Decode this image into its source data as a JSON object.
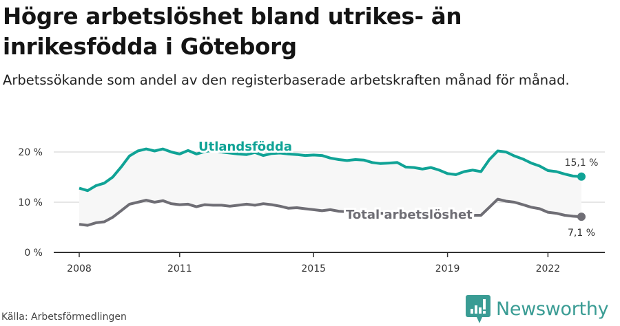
{
  "header": {
    "title": "Högre arbetslöshet bland utrikes- än inrikesfödda i Göteborg",
    "subtitle": "Arbetssökande som andel av den registerbaserade arbetskraften månad för månad."
  },
  "footer": {
    "source": "Källa: Arbetsförmedlingen",
    "brand": "Newsworthy",
    "brand_icon": "bar-chart-speech-bubble-icon"
  },
  "colors": {
    "utlandsfodda": "#10a396",
    "total": "#6f6e75",
    "band_fill": "#f7f7f7",
    "grid": "#dddddd",
    "axis": "#333333",
    "brand": "#3a9c94"
  },
  "chart_data": {
    "type": "line",
    "title": "Högre arbetslöshet bland utrikes- än inrikesfödda i Göteborg",
    "subtitle": "Arbetssökande som andel av den registerbaserade arbetskraften månad för månad.",
    "xlabel": "",
    "ylabel": "",
    "ylim": [
      0,
      22
    ],
    "y_ticks": [
      0,
      10,
      20
    ],
    "y_tick_labels": [
      "0 %",
      "10 %",
      "20 %"
    ],
    "x_ticks": [
      2008,
      2011,
      2015,
      2019,
      2022
    ],
    "x_tick_labels": [
      "2008",
      "2011",
      "2015",
      "2019",
      "2022"
    ],
    "grid": true,
    "legend": "inline labels",
    "x_start": 2008.0,
    "x_step_months": 3,
    "series": [
      {
        "name": "Utlandsfödda",
        "label": "Utlandsfödda",
        "end_label": "15,1 %",
        "values": [
          12.8,
          12.3,
          13.3,
          13.8,
          15.0,
          17.0,
          19.2,
          20.2,
          20.6,
          20.2,
          20.6,
          20.0,
          19.6,
          20.3,
          19.6,
          20.1,
          20.3,
          20.0,
          19.8,
          19.6,
          19.5,
          19.9,
          19.3,
          19.7,
          19.8,
          19.6,
          19.5,
          19.3,
          19.4,
          19.3,
          18.8,
          18.5,
          18.3,
          18.5,
          18.4,
          17.9,
          17.7,
          17.8,
          17.9,
          17.0,
          16.9,
          16.6,
          16.9,
          16.4,
          15.7,
          15.5,
          16.1,
          16.4,
          16.1,
          18.5,
          20.2,
          20.0,
          19.2,
          18.6,
          17.8,
          17.2,
          16.3,
          16.1,
          15.6,
          15.2,
          15.1
        ]
      },
      {
        "name": "Total arbetslöshet",
        "label": "Total arbetslöshet",
        "end_label": "7,1 %",
        "values": [
          5.6,
          5.4,
          5.9,
          6.1,
          7.0,
          8.3,
          9.6,
          10.0,
          10.4,
          10.0,
          10.3,
          9.7,
          9.5,
          9.6,
          9.1,
          9.5,
          9.4,
          9.4,
          9.2,
          9.4,
          9.6,
          9.4,
          9.7,
          9.5,
          9.2,
          8.8,
          8.9,
          8.7,
          8.5,
          8.3,
          8.5,
          8.2,
          8.1,
          8.0,
          7.9,
          7.8,
          7.8,
          7.7,
          7.6,
          7.6,
          7.6,
          7.5,
          7.5,
          7.5,
          7.4,
          7.4,
          7.4,
          7.4,
          7.4,
          9.0,
          10.6,
          10.2,
          10.0,
          9.5,
          9.0,
          8.7,
          8.0,
          7.8,
          7.4,
          7.2,
          7.1
        ]
      }
    ]
  }
}
